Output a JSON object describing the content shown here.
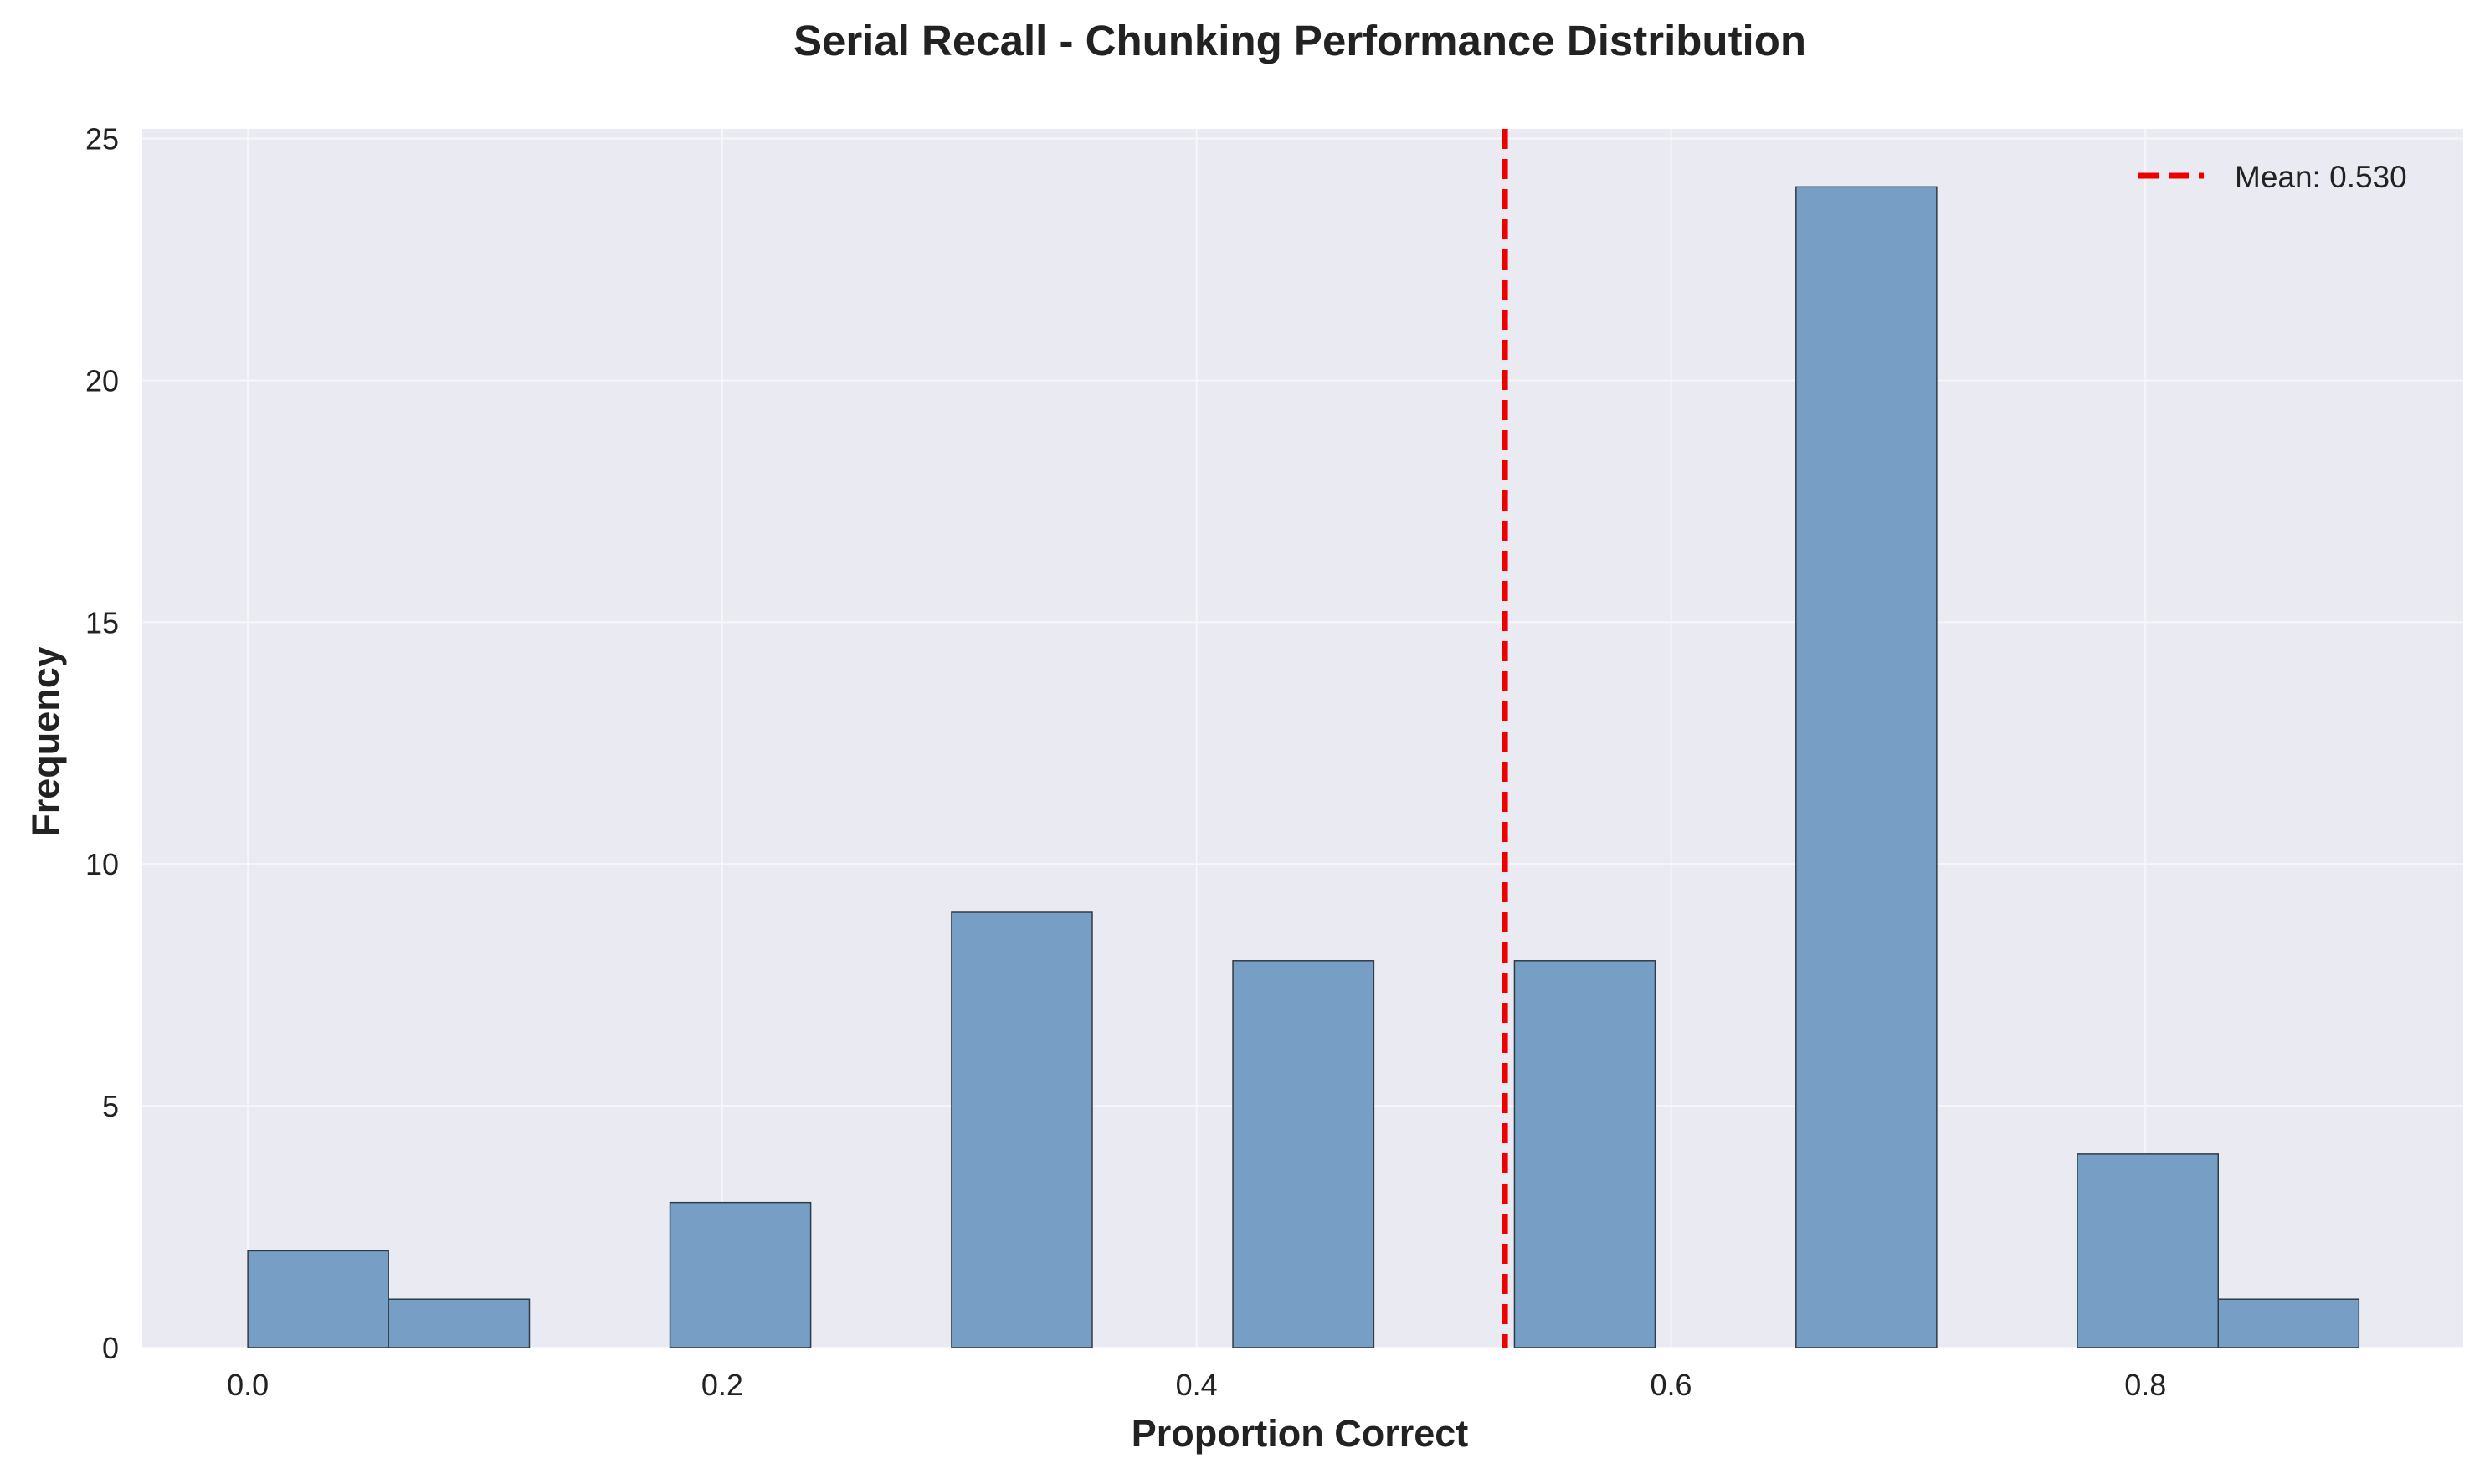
{
  "chart_data": {
    "type": "bar",
    "title": "Serial Recall - Chunking Performance Distribution",
    "xlabel": "Proportion Correct",
    "ylabel": "Frequency",
    "xlim": [
      -0.0445,
      0.934
    ],
    "ylim": [
      0,
      25.2
    ],
    "grid": true,
    "legend_position": "top-right",
    "x_ticks": [
      {
        "value": 0.0,
        "label": "0.0"
      },
      {
        "value": 0.2,
        "label": "0.2"
      },
      {
        "value": 0.4,
        "label": "0.4"
      },
      {
        "value": 0.6,
        "label": "0.6"
      },
      {
        "value": 0.8,
        "label": "0.8"
      }
    ],
    "y_ticks": [
      {
        "value": 0,
        "label": "0"
      },
      {
        "value": 5,
        "label": "5"
      },
      {
        "value": 10,
        "label": "10"
      },
      {
        "value": 15,
        "label": "15"
      },
      {
        "value": 20,
        "label": "20"
      },
      {
        "value": 25,
        "label": "25"
      }
    ],
    "bin_edges": [
      0.0,
      0.0593,
      0.1187,
      0.178,
      0.2373,
      0.2967,
      0.356,
      0.4153,
      0.4747,
      0.534,
      0.5933,
      0.6527,
      0.712,
      0.7713,
      0.8307,
      0.89
    ],
    "counts": [
      2,
      1,
      0,
      3,
      0,
      9,
      0,
      8,
      0,
      8,
      0,
      24,
      0,
      4,
      1
    ],
    "mean_line": {
      "value": 0.53,
      "label": "Mean: 0.530"
    },
    "colors": {
      "bar_fill": "#779fc6",
      "bar_edge": "#2f3b47",
      "mean_line": "#ee0000",
      "plot_background": "#eaeaf2",
      "grid": "#f6f6fa",
      "text": "#222222"
    }
  }
}
